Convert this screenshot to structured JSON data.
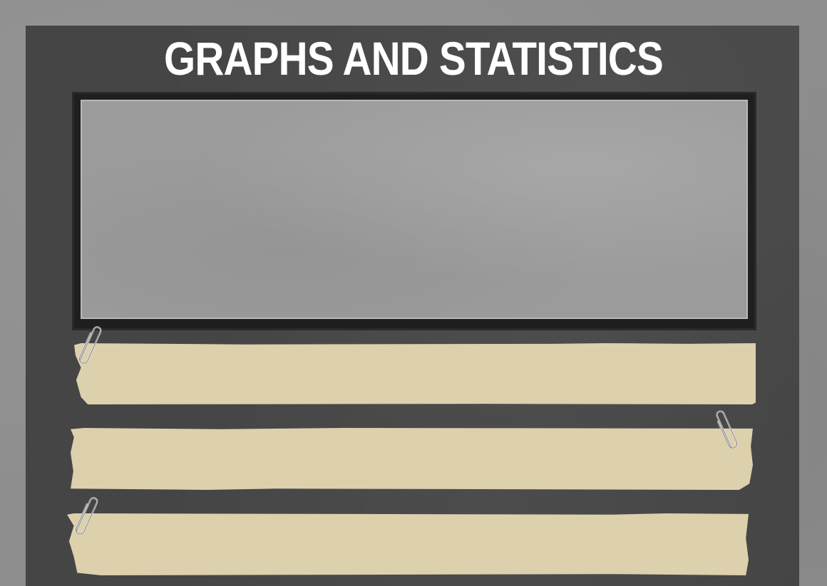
{
  "header": {
    "title": "GRAPHS AND STATISTICS"
  },
  "colors": {
    "page_background": "#8e8e8e",
    "board_background": "#454545",
    "frame_border": "#1f1f1f",
    "frame_fill": "#9b9b9b",
    "strip_fill": "#ddd0ad",
    "title_text": "#ffffff"
  },
  "decorations": {
    "clip_icon": "paperclip-icon",
    "strip_count": 3
  }
}
